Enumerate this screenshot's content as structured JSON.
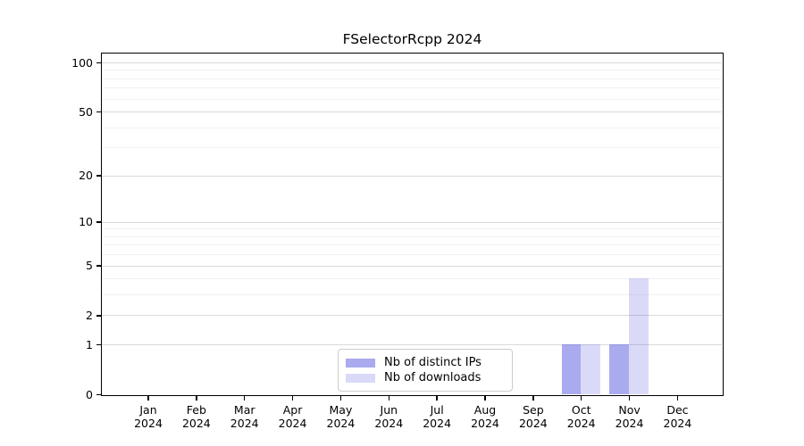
{
  "chart_data": {
    "type": "bar",
    "title": "FSelectorRcpp 2024",
    "categories": [
      "Jan 2024",
      "Feb 2024",
      "Mar 2024",
      "Apr 2024",
      "May 2024",
      "Jun 2024",
      "Jul 2024",
      "Aug 2024",
      "Sep 2024",
      "Oct 2024",
      "Nov 2024",
      "Dec 2024"
    ],
    "x_months": [
      "Jan",
      "Feb",
      "Mar",
      "Apr",
      "May",
      "Jun",
      "Jul",
      "Aug",
      "Sep",
      "Oct",
      "Nov",
      "Dec"
    ],
    "x_year": "2024",
    "series": [
      {
        "key": "distinct-ips",
        "name": "Nb of distinct IPs",
        "color": "rgba(85,85,221,0.5)",
        "values": [
          0,
          0,
          0,
          0,
          0,
          0,
          0,
          0,
          0,
          1,
          1,
          0
        ]
      },
      {
        "key": "downloads",
        "name": "Nb of downloads",
        "color": "rgba(85,85,221,0.22)",
        "values": [
          0,
          0,
          0,
          0,
          0,
          0,
          0,
          0,
          0,
          1,
          4,
          0
        ]
      }
    ],
    "xlabel": "",
    "ylabel": "",
    "y_scale": "log1p",
    "y_ticks": [
      0,
      1,
      2,
      5,
      10,
      20,
      50,
      100
    ],
    "y_minor_ticks": [
      3,
      4,
      6,
      7,
      8,
      9,
      30,
      40,
      60,
      70,
      80,
      90
    ],
    "ylim": [
      0,
      115
    ],
    "grid": true,
    "legend_position": "inside lower-center"
  },
  "colors": {
    "bar_distinct_ips": "rgba(85,85,221,0.5)",
    "bar_downloads": "rgba(85,85,221,0.22)",
    "grid_major": "#d9d9d9",
    "grid_minor": "#f1f1f1",
    "spine": "#000000",
    "legend_border": "#cccccc",
    "background": "#ffffff"
  }
}
